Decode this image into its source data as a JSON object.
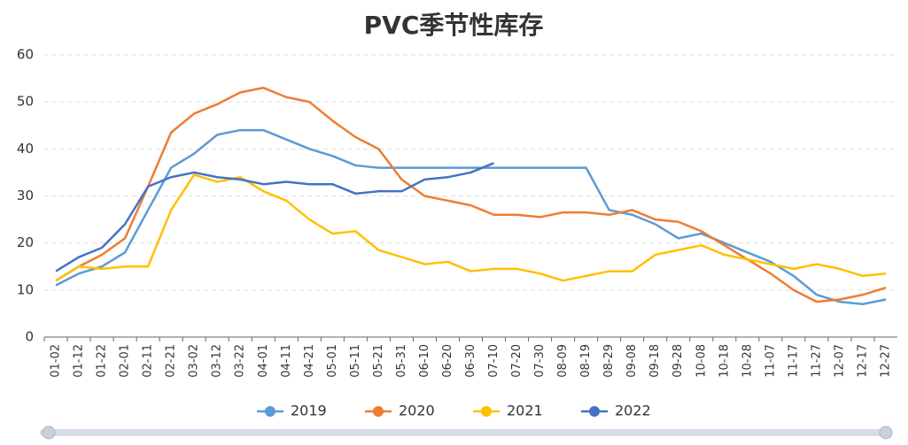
{
  "chart_data": {
    "type": "line",
    "title": "PVC季节性库存",
    "categories": [
      "01-02",
      "01-12",
      "01-22",
      "02-01",
      "02-11",
      "02-21",
      "03-02",
      "03-12",
      "03-22",
      "04-01",
      "04-11",
      "04-21",
      "05-01",
      "05-11",
      "05-21",
      "05-31",
      "06-10",
      "06-20",
      "06-30",
      "07-10",
      "07-20",
      "07-30",
      "08-09",
      "08-19",
      "08-29",
      "09-08",
      "09-18",
      "09-28",
      "10-08",
      "10-18",
      "10-28",
      "11-07",
      "11-17",
      "11-27",
      "12-07",
      "12-17",
      "12-27"
    ],
    "series": [
      {
        "name": "2019",
        "color": "#5b9bd5",
        "values": [
          11,
          13.5,
          15,
          18,
          27,
          36,
          39,
          43,
          44,
          44,
          42,
          40,
          38.5,
          36.5,
          36,
          36,
          36,
          36,
          36,
          36,
          36,
          36,
          36,
          36,
          27,
          26,
          24,
          21,
          22,
          20,
          18,
          16,
          13,
          9,
          7.5,
          7,
          8
        ]
      },
      {
        "name": "2020",
        "color": "#ed7d31",
        "values": [
          12,
          15,
          17.5,
          21,
          32,
          43.5,
          47.5,
          49.5,
          52,
          53,
          51,
          50,
          46,
          42.5,
          40,
          33.5,
          30,
          29,
          28,
          26,
          26,
          25.5,
          26.5,
          26.5,
          26,
          27,
          25,
          24.5,
          22.5,
          19.5,
          16.5,
          13.5,
          10,
          7.5,
          8,
          9,
          10.5
        ]
      },
      {
        "name": "2021",
        "color": "#ffc000",
        "values": [
          12,
          15,
          14.5,
          15,
          15,
          27,
          34.5,
          33,
          34,
          31,
          29,
          25,
          22,
          22.5,
          18.5,
          17,
          15.5,
          16,
          14,
          14.5,
          14.5,
          13.5,
          12,
          13,
          14,
          14,
          17.5,
          18.5,
          19.5,
          17.5,
          16.5,
          15.5,
          14.5,
          15.5,
          14.5,
          13,
          13.5
        ]
      },
      {
        "name": "2022",
        "color": "#4472c4",
        "values": [
          14,
          17,
          19,
          24,
          32,
          34,
          35,
          34,
          33.5,
          32.5,
          33,
          32.5,
          32.5,
          30.5,
          31,
          31,
          33.5,
          34,
          35,
          37,
          null,
          null,
          null,
          null,
          null,
          null,
          null,
          null,
          null,
          null,
          null,
          null,
          null,
          null,
          null,
          null,
          null
        ]
      }
    ],
    "ylim": [
      0,
      60
    ],
    "yticks": [
      0,
      10,
      20,
      30,
      40,
      50,
      60
    ],
    "grid": true
  }
}
